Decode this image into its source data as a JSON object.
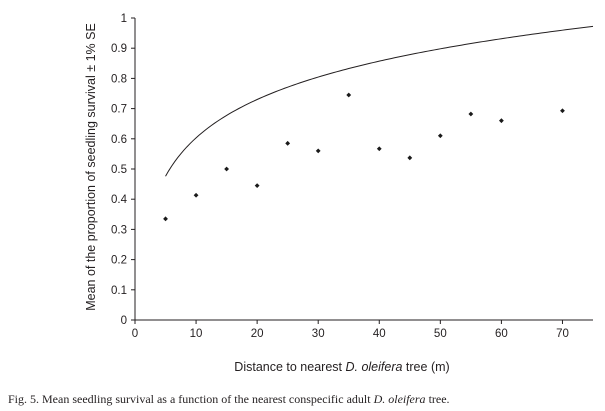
{
  "chart_data": {
    "type": "scatter",
    "xlabel_parts": [
      "Distance to nearest ",
      "D. oleifera",
      " tree (m)"
    ],
    "ylabel": "Mean of the proportion of seedling survival ± 1% SE",
    "xlim": [
      0,
      75
    ],
    "ylim": [
      0,
      1
    ],
    "x_ticks": [
      0,
      10,
      20,
      30,
      40,
      50,
      60,
      70
    ],
    "y_ticks": [
      0,
      0.1,
      0.2,
      0.3,
      0.4,
      0.5,
      0.6,
      0.7,
      0.8,
      0.9,
      1
    ],
    "y_tick_labels": [
      "0",
      "0.1",
      "0.2",
      "0.3",
      "0.4",
      "0.5",
      "0.6",
      "0.7",
      "0.8",
      "0.9",
      "1"
    ],
    "points": [
      {
        "x": 5,
        "y": 0.335
      },
      {
        "x": 10,
        "y": 0.413
      },
      {
        "x": 15,
        "y": 0.5
      },
      {
        "x": 20,
        "y": 0.445
      },
      {
        "x": 25,
        "y": 0.585
      },
      {
        "x": 30,
        "y": 0.56
      },
      {
        "x": 35,
        "y": 0.745
      },
      {
        "x": 40,
        "y": 0.567
      },
      {
        "x": 45,
        "y": 0.537
      },
      {
        "x": 50,
        "y": 0.61
      },
      {
        "x": 55,
        "y": 0.682
      },
      {
        "x": 60,
        "y": 0.66
      },
      {
        "x": 70,
        "y": 0.693
      }
    ],
    "trendline": {
      "type": "logarithmic",
      "a": 0.1832,
      "b": 0.1813,
      "x_range": [
        5,
        75
      ]
    },
    "grid": false,
    "legend": "none"
  },
  "caption": {
    "prefix": "Fig. 5. Mean seedling survival as a function of the nearest conspecific adult ",
    "species": "D. oleifera",
    "suffix": " tree."
  },
  "colors": {
    "ink": "#231f20",
    "marker": "#1a1a1a"
  }
}
